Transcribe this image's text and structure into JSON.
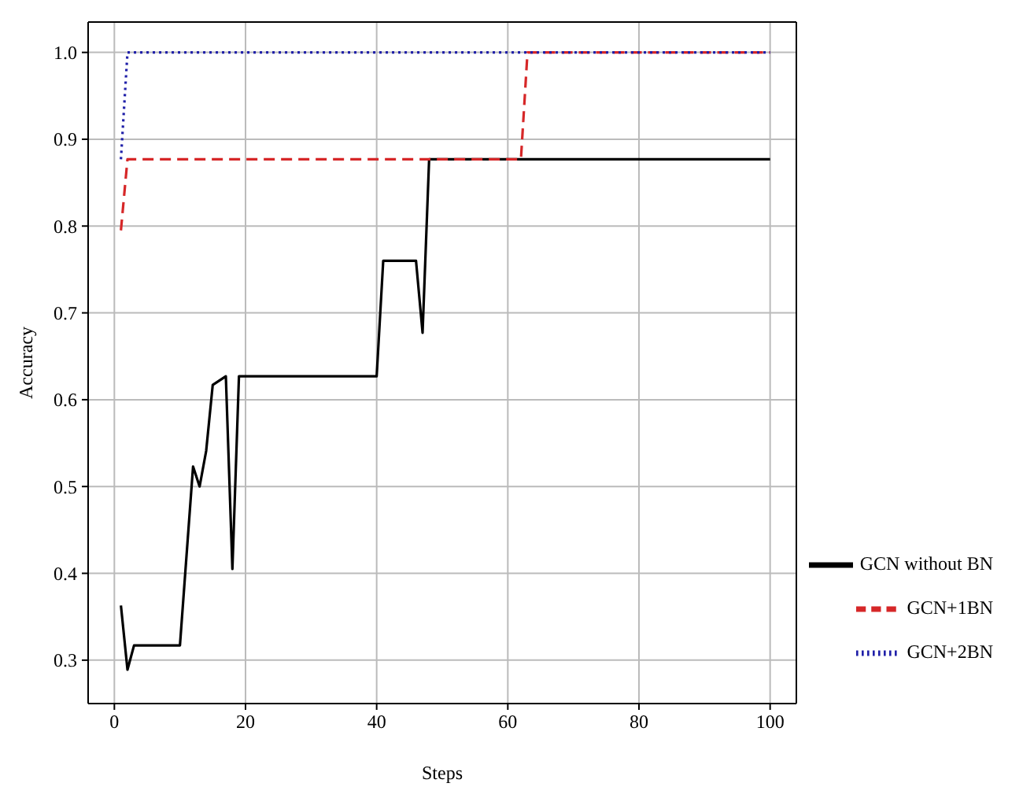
{
  "chart_data": {
    "type": "line",
    "xlabel": "Steps",
    "ylabel": "Accuracy",
    "xlim": [
      -4,
      104
    ],
    "ylim": [
      0.25,
      1.035
    ],
    "xticks": [
      0,
      20,
      40,
      60,
      80,
      100
    ],
    "yticks": [
      0.3,
      0.4,
      0.5,
      0.6,
      0.7,
      0.8,
      0.9,
      {
        "value": 1,
        "label": "1.0"
      }
    ],
    "grid": true,
    "legend": "bottom right",
    "marker": "none",
    "series": [
      {
        "name": "GCN without BN",
        "color": "#000000",
        "line_style": "solid",
        "x": [
          1,
          2,
          3,
          10,
          12,
          13,
          14,
          15,
          17,
          18,
          19,
          40,
          41,
          46,
          47,
          48,
          100
        ],
        "values": [
          0.363,
          0.289,
          0.317,
          0.317,
          0.523,
          0.5,
          0.541,
          0.617,
          0.627,
          0.405,
          0.627,
          0.627,
          0.76,
          0.76,
          0.677,
          0.877,
          0.877
        ]
      },
      {
        "name": "GCN+1BN",
        "color": "#d62728",
        "line_style": "dashed",
        "x": [
          1,
          2,
          62,
          63,
          100
        ],
        "values": [
          0.795,
          0.877,
          0.877,
          1.0,
          1.0
        ]
      },
      {
        "name": "GCN+2BN",
        "color": "#1f1fa8",
        "line_style": "dotted",
        "x": [
          1,
          2,
          100
        ],
        "values": [
          0.877,
          1.0,
          1.0
        ]
      }
    ]
  }
}
